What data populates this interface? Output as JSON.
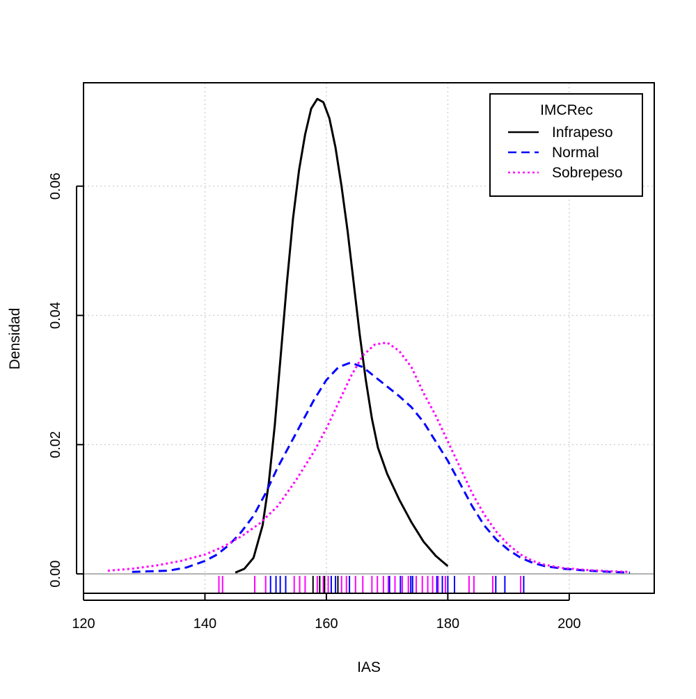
{
  "chart_data": {
    "type": "line",
    "xlabel": "IAS",
    "ylabel": "Densidad",
    "xlim": [
      120,
      214
    ],
    "ylim": [
      -0.003,
      0.076
    ],
    "x_ticks": [
      "120",
      "140",
      "160",
      "180",
      "200"
    ],
    "y_ticks": [
      "0.00",
      "0.02",
      "0.04",
      "0.06"
    ],
    "grid": true,
    "legend": {
      "title": "IMCRec",
      "position": "top-right",
      "entries": [
        "Infrapeso",
        "Normal",
        "Sobrepeso"
      ]
    },
    "series": [
      {
        "name": "Infrapeso",
        "color": "#000000",
        "dash": "solid",
        "points": [
          [
            145.0,
            0.0002
          ],
          [
            146.5,
            0.0008
          ],
          [
            148.0,
            0.0025
          ],
          [
            149.5,
            0.0075
          ],
          [
            150.5,
            0.014
          ],
          [
            151.5,
            0.023
          ],
          [
            152.5,
            0.034
          ],
          [
            153.5,
            0.045
          ],
          [
            154.5,
            0.055
          ],
          [
            155.5,
            0.0625
          ],
          [
            156.5,
            0.068
          ],
          [
            157.5,
            0.072
          ],
          [
            158.5,
            0.0735
          ],
          [
            159.5,
            0.073
          ],
          [
            160.5,
            0.0705
          ],
          [
            161.5,
            0.066
          ],
          [
            162.5,
            0.06
          ],
          [
            163.5,
            0.053
          ],
          [
            164.5,
            0.045
          ],
          [
            165.5,
            0.037
          ],
          [
            166.5,
            0.03
          ],
          [
            167.5,
            0.024
          ],
          [
            168.5,
            0.0195
          ],
          [
            170.0,
            0.0155
          ],
          [
            172.0,
            0.0115
          ],
          [
            174.0,
            0.008
          ],
          [
            176.0,
            0.005
          ],
          [
            178.0,
            0.0028
          ],
          [
            180.0,
            0.0012
          ]
        ]
      },
      {
        "name": "Normal",
        "color": "#0000ff",
        "dash": "dashed",
        "points": [
          [
            128.0,
            0.0003
          ],
          [
            131.0,
            0.0004
          ],
          [
            134.0,
            0.0005
          ],
          [
            137.0,
            0.001
          ],
          [
            140.0,
            0.002
          ],
          [
            142.0,
            0.003
          ],
          [
            144.0,
            0.0045
          ],
          [
            146.0,
            0.0065
          ],
          [
            148.0,
            0.009
          ],
          [
            150.0,
            0.0125
          ],
          [
            152.0,
            0.0165
          ],
          [
            154.0,
            0.02
          ],
          [
            156.0,
            0.0235
          ],
          [
            158.0,
            0.027
          ],
          [
            160.0,
            0.03
          ],
          [
            162.0,
            0.032
          ],
          [
            164.0,
            0.0327
          ],
          [
            166.0,
            0.032
          ],
          [
            168.0,
            0.0305
          ],
          [
            170.0,
            0.029
          ],
          [
            172.0,
            0.0275
          ],
          [
            174.0,
            0.0258
          ],
          [
            176.0,
            0.0235
          ],
          [
            178.0,
            0.0205
          ],
          [
            180.0,
            0.0175
          ],
          [
            182.0,
            0.014
          ],
          [
            184.0,
            0.0105
          ],
          [
            186.0,
            0.0075
          ],
          [
            188.0,
            0.0053
          ],
          [
            190.0,
            0.0037
          ],
          [
            192.0,
            0.0025
          ],
          [
            194.0,
            0.0017
          ],
          [
            196.0,
            0.0012
          ],
          [
            199.0,
            0.0008
          ],
          [
            203.0,
            0.0005
          ],
          [
            207.0,
            0.0003
          ],
          [
            210.0,
            0.0002
          ]
        ]
      },
      {
        "name": "Sobrepeso",
        "color": "#ff00ff",
        "dash": "dotted",
        "points": [
          [
            124.0,
            0.0005
          ],
          [
            128.0,
            0.0008
          ],
          [
            132.0,
            0.0013
          ],
          [
            136.0,
            0.002
          ],
          [
            140.0,
            0.003
          ],
          [
            143.0,
            0.0042
          ],
          [
            146.0,
            0.0058
          ],
          [
            149.0,
            0.0078
          ],
          [
            152.0,
            0.0105
          ],
          [
            155.0,
            0.0145
          ],
          [
            158.0,
            0.019
          ],
          [
            160.0,
            0.0225
          ],
          [
            162.0,
            0.0265
          ],
          [
            164.0,
            0.0305
          ],
          [
            166.0,
            0.0338
          ],
          [
            168.0,
            0.0355
          ],
          [
            170.0,
            0.0358
          ],
          [
            172.0,
            0.0345
          ],
          [
            174.0,
            0.032
          ],
          [
            176.0,
            0.028
          ],
          [
            178.0,
            0.0245
          ],
          [
            180.0,
            0.0205
          ],
          [
            182.0,
            0.0165
          ],
          [
            184.0,
            0.0125
          ],
          [
            186.0,
            0.0092
          ],
          [
            188.0,
            0.0065
          ],
          [
            190.0,
            0.0045
          ],
          [
            192.0,
            0.003
          ],
          [
            194.0,
            0.002
          ],
          [
            196.0,
            0.0014
          ],
          [
            199.0,
            0.0009
          ],
          [
            203.0,
            0.0006
          ],
          [
            207.0,
            0.0004
          ],
          [
            210.0,
            0.0003
          ]
        ]
      }
    ],
    "rug": [
      {
        "series": "Sobrepeso",
        "values": [
          142.3,
          142.9,
          148.2,
          150.0,
          154.7,
          155.6,
          156.5,
          158.5,
          159.5,
          160.3,
          162.5,
          163.3,
          164.8,
          166.0,
          167.5,
          168.4,
          169.4,
          170.2,
          171.3,
          172.5,
          173.5,
          174.8,
          175.8,
          176.7,
          177.5,
          178.4,
          179.6,
          183.5,
          184.3,
          187.4,
          192.0
        ]
      },
      {
        "series": "Normal",
        "values": [
          150.8,
          151.7,
          152.4,
          153.3,
          160.8,
          161.5,
          163.8,
          170.4,
          172.2,
          173.9,
          174.2,
          178.2,
          179.1,
          180.0,
          181.1,
          187.9,
          189.4,
          192.5
        ]
      },
      {
        "series": "Infrapeso",
        "values": [
          157.8,
          158.9,
          159.7,
          161.9
        ]
      }
    ]
  }
}
